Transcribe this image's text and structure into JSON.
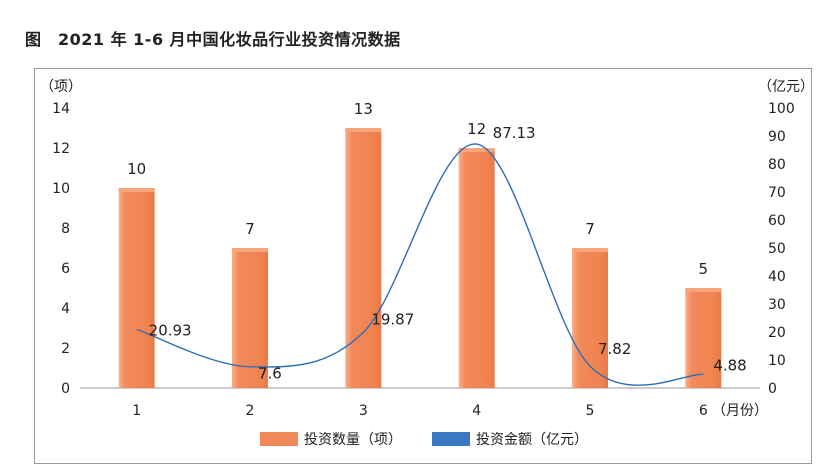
{
  "caption": "图　2021 年 1-6 月中国化妆品行业投资情况数据",
  "chart_data": {
    "type": "bar",
    "categories": [
      "1",
      "2",
      "3",
      "4",
      "5",
      "6"
    ],
    "xlabel": "（月份）",
    "y_left_label": "（项）",
    "y_right_label": "（亿元）",
    "y_left_ticks": [
      "0",
      "2",
      "4",
      "6",
      "8",
      "10",
      "12",
      "14"
    ],
    "y_right_ticks": [
      "0",
      "10",
      "20",
      "30",
      "40",
      "50",
      "60",
      "70",
      "80",
      "90",
      "100"
    ],
    "ylim_left": [
      0,
      14
    ],
    "ylim_right": [
      0,
      100
    ],
    "legend_position": "bottom",
    "series": [
      {
        "name": "投资数量（项）",
        "type": "bar",
        "axis": "left",
        "color": "#f0885a",
        "values": [
          10,
          7,
          13,
          12,
          7,
          5
        ],
        "labels": [
          "10",
          "7",
          "13",
          "12",
          "7",
          "5"
        ]
      },
      {
        "name": "投资金额（亿元）",
        "type": "line",
        "axis": "right",
        "color": "#2e6db4",
        "legend_color": "#3a78c4",
        "values": [
          20.93,
          7.6,
          19.87,
          87.13,
          7.82,
          4.88
        ],
        "labels": [
          "20.93",
          "7.6",
          "19.87",
          "87.13",
          "7.82",
          "4.88"
        ]
      }
    ]
  }
}
